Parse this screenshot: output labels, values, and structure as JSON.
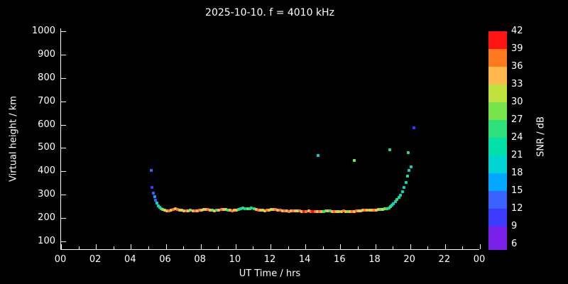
{
  "title": "2025-10-10. f = 4010 kHz",
  "axes": {
    "xlabel": "UT Time / hrs",
    "ylabel": "Virtual height / km",
    "x_tick_values": [
      0,
      2,
      4,
      6,
      8,
      10,
      12,
      14,
      16,
      18,
      20,
      22,
      24
    ],
    "x_tick_labels": [
      "00",
      "02",
      "04",
      "06",
      "08",
      "10",
      "12",
      "14",
      "16",
      "18",
      "20",
      "22",
      "00"
    ],
    "y_tick_values": [
      1000,
      900,
      800,
      700,
      600,
      500,
      400,
      300,
      200,
      100
    ],
    "x_range": [
      0,
      24
    ],
    "y_range": [
      100,
      1000
    ]
  },
  "colorbar": {
    "label": "SNR / dB",
    "tick_labels": [
      "42",
      "39",
      "36",
      "33",
      "30",
      "27",
      "24",
      "21",
      "18",
      "15",
      "12",
      "9",
      "6"
    ],
    "values_low_to_high": [
      6,
      9,
      12,
      15,
      18,
      21,
      24,
      27,
      30,
      33,
      36,
      39
    ],
    "colors_low_to_high": [
      "#7b1fe8",
      "#3b3bff",
      "#3a62ff",
      "#00a8ff",
      "#00d4d4",
      "#00e0a8",
      "#2ee07a",
      "#78e44c",
      "#c0e23c",
      "#ffb84d",
      "#ff7a1e",
      "#ff1414"
    ]
  },
  "chart_data": {
    "type": "scatter",
    "title": "2025-10-10. f = 4010 kHz",
    "xlabel": "UT Time / hrs",
    "ylabel": "Virtual height / km",
    "xlim": [
      0,
      24
    ],
    "ylim": [
      100,
      1000
    ],
    "grid": false,
    "colorbar_label": "SNR / dB",
    "colorbar_range": [
      6,
      42
    ],
    "point_format": [
      "time_hours",
      "virtual_height_km",
      "snr_db"
    ],
    "points": [
      [
        5.15,
        403,
        12
      ],
      [
        5.22,
        332,
        9
      ],
      [
        5.28,
        307,
        12
      ],
      [
        5.35,
        291,
        15
      ],
      [
        5.42,
        277,
        12
      ],
      [
        5.5,
        264,
        18
      ],
      [
        5.58,
        253,
        21
      ],
      [
        5.66,
        246,
        18
      ],
      [
        5.74,
        241,
        24
      ],
      [
        5.83,
        237,
        27
      ],
      [
        5.92,
        233,
        30
      ],
      [
        6.05,
        231,
        33
      ],
      [
        6.18,
        230,
        36
      ],
      [
        6.3,
        233,
        33
      ],
      [
        6.42,
        237,
        36
      ],
      [
        6.55,
        239,
        33
      ],
      [
        6.68,
        237,
        36
      ],
      [
        6.8,
        235,
        33
      ],
      [
        6.92,
        233,
        30
      ],
      [
        7.05,
        232,
        33
      ],
      [
        7.18,
        231,
        36
      ],
      [
        7.3,
        232,
        33
      ],
      [
        7.42,
        233,
        27
      ],
      [
        7.55,
        231,
        33
      ],
      [
        7.68,
        230,
        36
      ],
      [
        7.8,
        232,
        33
      ],
      [
        7.92,
        234,
        36
      ],
      [
        8.05,
        235,
        33
      ],
      [
        8.18,
        237,
        30
      ],
      [
        8.3,
        238,
        33
      ],
      [
        8.42,
        237,
        36
      ],
      [
        8.55,
        235,
        33
      ],
      [
        8.68,
        233,
        27
      ],
      [
        8.8,
        232,
        33
      ],
      [
        8.92,
        233,
        24
      ],
      [
        9.05,
        235,
        33
      ],
      [
        9.18,
        237,
        36
      ],
      [
        9.3,
        238,
        33
      ],
      [
        9.42,
        236,
        30
      ],
      [
        9.55,
        234,
        24
      ],
      [
        9.68,
        233,
        33
      ],
      [
        9.8,
        232,
        36
      ],
      [
        9.92,
        233,
        33
      ],
      [
        10.05,
        235,
        33
      ],
      [
        10.18,
        237,
        24
      ],
      [
        10.3,
        240,
        21
      ],
      [
        10.42,
        242,
        24
      ],
      [
        10.55,
        241,
        21
      ],
      [
        10.68,
        239,
        27
      ],
      [
        10.8,
        241,
        24
      ],
      [
        10.92,
        243,
        21
      ],
      [
        11.05,
        241,
        24
      ],
      [
        11.18,
        238,
        33
      ],
      [
        11.3,
        235,
        36
      ],
      [
        11.42,
        234,
        33
      ],
      [
        11.55,
        233,
        30
      ],
      [
        11.68,
        232,
        33
      ],
      [
        11.8,
        233,
        36
      ],
      [
        11.92,
        235,
        33
      ],
      [
        12.05,
        236,
        30
      ],
      [
        12.18,
        238,
        33
      ],
      [
        12.3,
        236,
        36
      ],
      [
        12.42,
        234,
        33
      ],
      [
        12.55,
        233,
        36
      ],
      [
        12.68,
        232,
        33
      ],
      [
        12.8,
        231,
        36
      ],
      [
        12.92,
        230,
        33
      ],
      [
        13.05,
        229,
        36
      ],
      [
        13.18,
        230,
        33
      ],
      [
        13.3,
        231,
        36
      ],
      [
        13.42,
        232,
        33
      ],
      [
        13.55,
        231,
        30
      ],
      [
        13.68,
        230,
        36
      ],
      [
        13.8,
        229,
        33
      ],
      [
        13.92,
        228,
        39
      ],
      [
        14.05,
        229,
        36
      ],
      [
        14.18,
        230,
        33
      ],
      [
        14.3,
        229,
        36
      ],
      [
        14.42,
        228,
        39
      ],
      [
        14.55,
        229,
        36
      ],
      [
        14.68,
        228,
        33
      ],
      [
        14.8,
        227,
        36
      ],
      [
        14.92,
        228,
        33
      ],
      [
        15.05,
        229,
        24
      ],
      [
        15.18,
        230,
        27
      ],
      [
        15.3,
        231,
        33
      ],
      [
        15.42,
        230,
        24
      ],
      [
        15.55,
        229,
        33
      ],
      [
        15.68,
        228,
        36
      ],
      [
        15.8,
        227,
        33
      ],
      [
        15.92,
        228,
        30
      ],
      [
        16.05,
        229,
        33
      ],
      [
        16.18,
        230,
        36
      ],
      [
        16.3,
        229,
        33
      ],
      [
        16.42,
        228,
        27
      ],
      [
        16.55,
        227,
        33
      ],
      [
        16.68,
        228,
        36
      ],
      [
        16.8,
        229,
        33
      ],
      [
        16.92,
        230,
        36
      ],
      [
        17.05,
        231,
        33
      ],
      [
        17.18,
        232,
        30
      ],
      [
        17.3,
        233,
        33
      ],
      [
        17.42,
        234,
        36
      ],
      [
        17.55,
        235,
        33
      ],
      [
        17.68,
        234,
        30
      ],
      [
        17.8,
        233,
        33
      ],
      [
        17.92,
        234,
        36
      ],
      [
        18.05,
        235,
        33
      ],
      [
        18.18,
        236,
        30
      ],
      [
        18.3,
        237,
        27
      ],
      [
        18.42,
        238,
        30
      ],
      [
        18.55,
        239,
        27
      ],
      [
        18.68,
        240,
        24
      ],
      [
        18.8,
        243,
        21
      ],
      [
        18.88,
        248,
        24
      ],
      [
        18.96,
        254,
        21
      ],
      [
        19.05,
        261,
        18
      ],
      [
        19.15,
        269,
        21
      ],
      [
        19.25,
        278,
        24
      ],
      [
        19.35,
        288,
        21
      ],
      [
        19.45,
        299,
        18
      ],
      [
        19.55,
        313,
        21
      ],
      [
        19.65,
        331,
        18
      ],
      [
        19.75,
        353,
        21
      ],
      [
        19.85,
        379,
        24
      ],
      [
        19.95,
        403,
        18
      ],
      [
        20.05,
        419,
        21
      ],
      [
        14.72,
        467,
        18
      ],
      [
        16.82,
        448,
        27
      ],
      [
        18.85,
        492,
        21
      ],
      [
        19.9,
        480,
        24
      ],
      [
        20.2,
        588,
        9
      ]
    ]
  }
}
